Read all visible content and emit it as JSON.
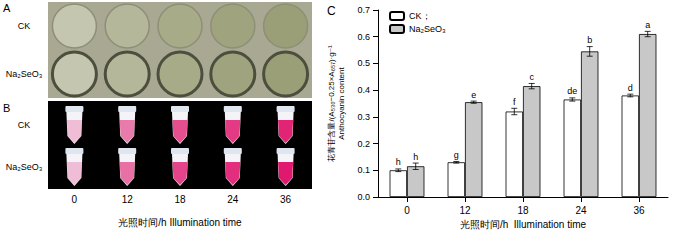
{
  "photo_panels": {
    "A": {
      "label": "A",
      "rows": [
        "CK",
        "Na₂SeO₃"
      ]
    },
    "B": {
      "label": "B",
      "rows": [
        "CK",
        "Na₂SeO₃"
      ]
    },
    "columns": [
      "0",
      "12",
      "18",
      "24",
      "36"
    ],
    "x_title": "光照时间/h  Illumination time"
  },
  "chart_data": {
    "type": "bar",
    "title": "C",
    "categories": [
      "0",
      "12",
      "18",
      "24",
      "36"
    ],
    "xlabel": "光照时间/h  Illumination time",
    "ylabel": [
      "花青苷含量/(A₅₃₀−0.25×A₆₅₇)·g⁻¹",
      "Anthocyanin content"
    ],
    "series": [
      {
        "name": "CK；",
        "color": "#ffffff",
        "values": [
          0.1,
          0.13,
          0.32,
          0.365,
          0.38
        ],
        "errors": [
          0.005,
          0.003,
          0.012,
          0.006,
          0.005
        ],
        "letters": [
          "h",
          "g",
          "f",
          "de",
          "d"
        ]
      },
      {
        "name": "Na₂SeO₃",
        "color": "#c8c8c8",
        "values": [
          0.115,
          0.355,
          0.415,
          0.545,
          0.61
        ],
        "errors": [
          0.012,
          0.004,
          0.01,
          0.018,
          0.01
        ],
        "letters": [
          "h",
          "e",
          "c",
          "b",
          "a"
        ]
      }
    ],
    "ylim": [
      0,
      0.7
    ],
    "yticks": [
      {
        "value": 0,
        "label": "0.0"
      },
      0.1,
      0.2,
      0.3,
      0.4,
      0.5,
      0.6,
      0.7
    ],
    "grid": false,
    "legend": "upper left"
  }
}
